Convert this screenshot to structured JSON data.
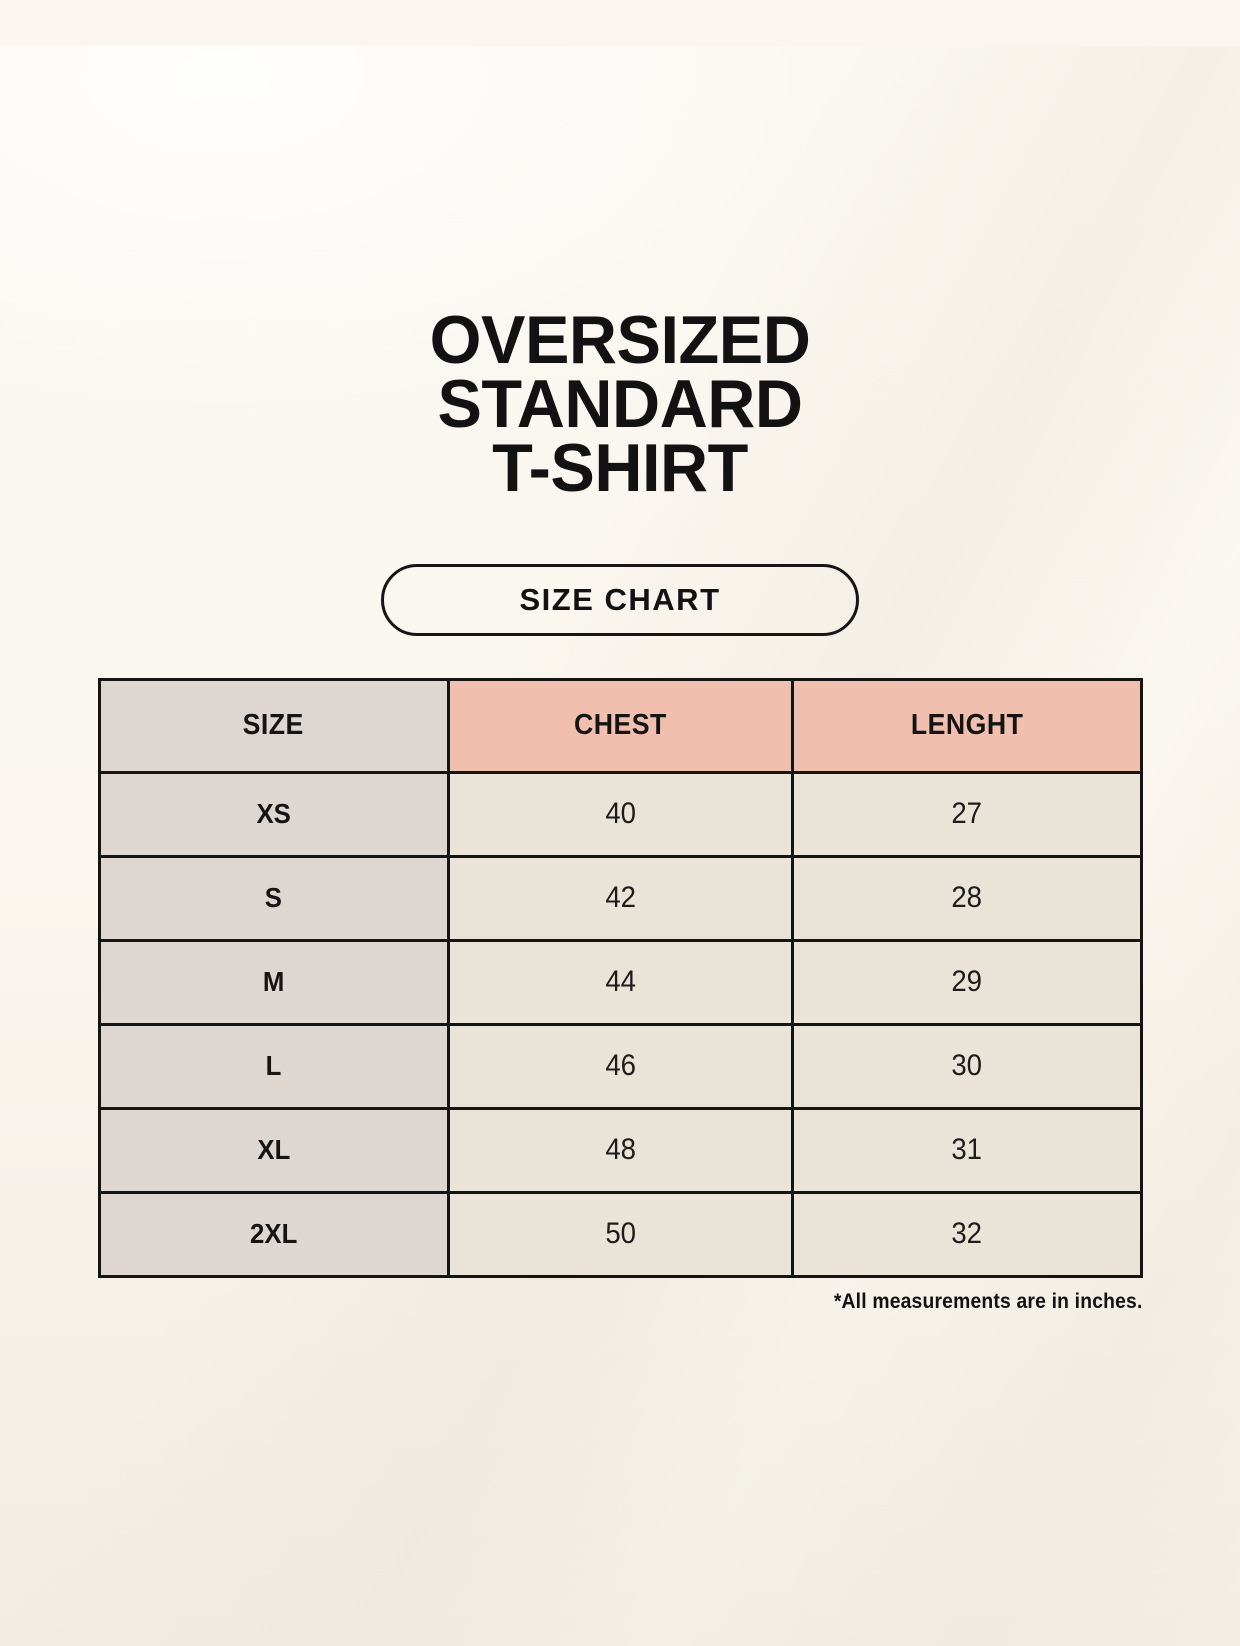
{
  "page": {
    "background_color": "#faf6ef"
  },
  "header": {
    "title_text": "OVERSIZED STANDARD T-SHIRT",
    "title_lines": [
      "OVERSIZED",
      "STANDARD",
      "T-SHIRT"
    ],
    "badge_label": "SIZE CHART"
  },
  "size_chart": {
    "columns": [
      {
        "key": "size",
        "label": "SIZE"
      },
      {
        "key": "chest",
        "label": "CHEST"
      },
      {
        "key": "length",
        "label": "LENGHT"
      }
    ],
    "rows": [
      {
        "size": "XS",
        "chest": "40",
        "length": "27"
      },
      {
        "size": "S",
        "chest": "42",
        "length": "28"
      },
      {
        "size": "M",
        "chest": "44",
        "length": "29"
      },
      {
        "size": "L",
        "chest": "46",
        "length": "30"
      },
      {
        "size": "XL",
        "chest": "48",
        "length": "31"
      },
      {
        "size": "2XL",
        "chest": "50",
        "length": "32"
      }
    ],
    "footnote": "*All measurements are in inches.",
    "colors": {
      "size_header_bg": "#ded7d1",
      "measurement_header_bg": "#f0bfae",
      "size_column_bg": "#ded7d1",
      "value_cell_bg": "#eae3d8",
      "table_border": "#141414",
      "page_background": "#faf6ef",
      "text": "#141414"
    }
  },
  "chart_data": {
    "type": "table",
    "title": "SIZE CHART",
    "columns": [
      "SIZE",
      "CHEST",
      "LENGHT"
    ],
    "rows": [
      [
        "XS",
        40,
        27
      ],
      [
        "S",
        42,
        28
      ],
      [
        "M",
        44,
        29
      ],
      [
        "L",
        46,
        30
      ],
      [
        "XL",
        48,
        31
      ],
      [
        "2XL",
        50,
        32
      ]
    ],
    "note": "*All measurements are in inches."
  }
}
